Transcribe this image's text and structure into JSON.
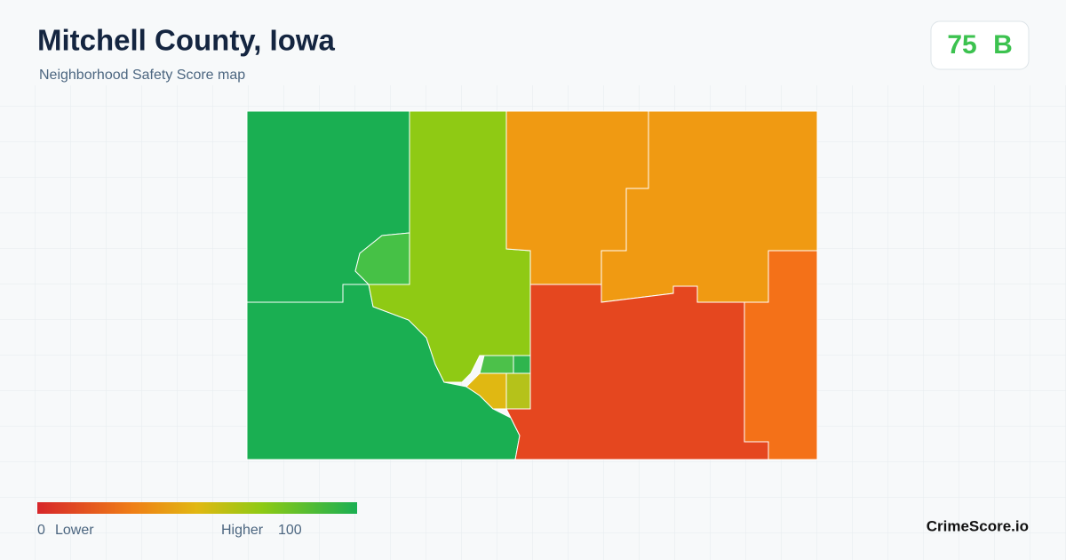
{
  "header": {
    "title": "Mitchell County, Iowa",
    "subtitle": "Neighborhood Safety Score map"
  },
  "badge": {
    "score": 75,
    "grade": "B"
  },
  "legend": {
    "min": 0,
    "min_label": "Lower",
    "max_label": "Higher",
    "max": 100
  },
  "brand": "CrimeScore.io"
}
